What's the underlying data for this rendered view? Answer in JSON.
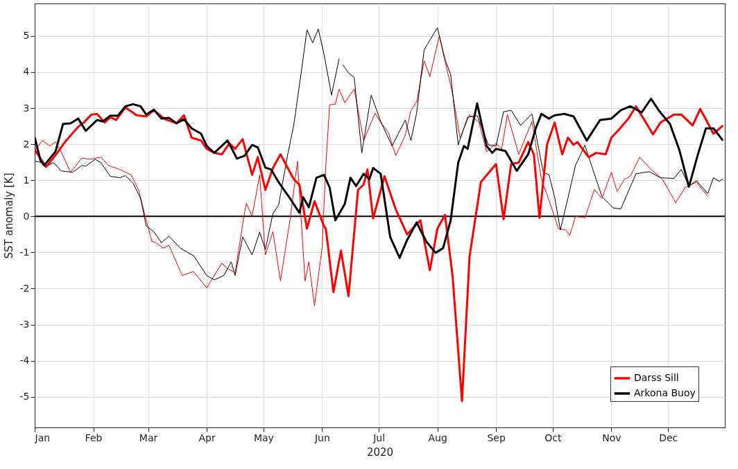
{
  "chart_data": {
    "type": "line",
    "xlabel": "2020",
    "ylabel": "SST anomaly [K]",
    "xlim": [
      "--01-01",
      "--12-31"
    ],
    "ylim": [
      -5.85,
      5.9
    ],
    "yticks": [
      -5,
      -4,
      -3,
      -2,
      -1,
      0,
      1,
      2,
      3,
      4,
      5
    ],
    "xticks": [
      {
        "value": "--01-01",
        "label": "Jan"
      },
      {
        "value": "--02-01",
        "label": "Feb"
      },
      {
        "value": "--03-01",
        "label": "Mar"
      },
      {
        "value": "--04-01",
        "label": "Apr"
      },
      {
        "value": "--05-01",
        "label": "May"
      },
      {
        "value": "--06-01",
        "label": "Jun"
      },
      {
        "value": "--07-01",
        "label": "Jul"
      },
      {
        "value": "--08-01",
        "label": "Aug"
      },
      {
        "value": "--09-01",
        "label": "Sep"
      },
      {
        "value": "--10-01",
        "label": "Oct"
      },
      {
        "value": "--11-01",
        "label": "Nov"
      },
      {
        "value": "--12-01",
        "label": "Dec"
      }
    ],
    "grid": true,
    "legend": "bottom right",
    "line_style": "solid",
    "marker": "none",
    "ref_lines": [
      {
        "axis": "y",
        "value": 0,
        "label": null,
        "color": "#000000"
      }
    ],
    "series": [
      {
        "color": "#ff0000",
        "x": [
          "--01-01",
          "--01-05",
          "--01-09",
          "--01-12",
          "--01-15",
          "--01-20",
          "--01-26",
          "--01-30",
          "--02-05",
          "--02-09",
          "--02-15",
          "--02-21",
          "--02-25",
          "--02-29",
          "--03-03",
          "--03-05",
          "--03-09",
          "--03-12",
          "--03-19",
          "--03-25",
          "--04-01",
          "--04-09",
          "--04-12",
          "--04-16",
          "--04-21",
          "--04-22",
          "--04-25",
          "--04-29",
          "--05-02",
          "--05-06",
          "--05-10",
          "--05-15",
          "--05-19",
          "--05-23",
          "--05-25",
          "--05-28",
          "--06-01",
          "--06-03",
          "--06-05",
          "--06-08",
          "--06-10",
          "--06-13",
          "--06-18",
          "--06-23",
          "--06-29",
          "--07-02",
          "--07-06",
          "--07-10",
          "--07-15",
          "--07-18",
          "--07-21",
          "--07-25",
          "--07-28",
          "--08-02",
          "--08-06",
          "--08-09",
          "--08-13",
          "--08-18",
          "--08-23",
          "--08-27",
          "--09-01",
          "--09-04",
          "--09-07",
          "--09-13",
          "--09-20",
          "--09-25",
          "--09-29",
          "--10-04",
          "--10-08",
          "--10-10",
          "--10-13",
          "--10-18",
          "--10-23",
          "--10-27",
          "--11-01",
          "--11-04",
          "--11-08",
          "--11-11",
          "--11-16",
          "--11-22",
          "--11-28",
          "--12-05",
          "--12-10",
          "--12-16",
          "--12-22"
        ],
        "values": [
          1.83,
          2.1,
          1.95,
          2.06,
          1.79,
          1.22,
          1.62,
          1.58,
          1.64,
          1.41,
          1.3,
          1.15,
          0.73,
          -0.11,
          -0.69,
          -0.73,
          -0.88,
          -0.8,
          -1.64,
          -1.53,
          -1.98,
          -1.3,
          -1.45,
          -1.56,
          0.11,
          0.36,
          0,
          1.15,
          -1.07,
          -0.42,
          -1.79,
          -0.11,
          1.53,
          -1.79,
          -1.26,
          -2.48,
          -0.88,
          1.41,
          3.09,
          3.11,
          3.53,
          3.15,
          3.53,
          2.1,
          2.86,
          2.6,
          2.33,
          1.68,
          2.25,
          2.94,
          3.17,
          4.31,
          3.87,
          5.0,
          4.08,
          3.4,
          2.18,
          2.82,
          2.6,
          1.79,
          2.02,
          1.87,
          2.82,
          1.72,
          2.63,
          1.03,
          0.45,
          -0.34,
          -0.38,
          -0.53,
          0,
          -0.04,
          0.74,
          0.5,
          1.22,
          0.69,
          1.03,
          1.11,
          1.64,
          1.3,
          1.03,
          0.38,
          0.8,
          0.95,
          0.55
        ]
      },
      {
        "color": "#000000",
        "x": [
          "--01-01",
          "--01-05",
          "--01-08",
          "--01-11",
          "--01-15",
          "--01-21",
          "--01-26",
          "--01-28",
          "--02-02",
          "--02-05",
          "--02-10",
          "--02-15",
          "--02-18",
          "--02-22",
          "--02-26",
          "--02-29",
          "--03-04",
          "--03-08",
          "--03-12",
          "--03-18",
          "--03-25",
          "--04-01",
          "--04-05",
          "--04-10",
          "--04-14",
          "--04-16",
          "--04-20",
          "--04-25",
          "--04-29",
          "--05-02",
          "--05-06",
          "--05-09",
          "--05-14",
          "--05-17",
          "--05-21",
          "--05-24",
          "--05-27",
          "--05-30",
          "--06-02",
          "--06-06",
          "--06-10",
          "--06-11",
          "--06-12",
          "--06-15",
          "--06-18",
          "--06-22",
          "--06-27",
          "--07-02",
          "--07-08",
          "--07-15",
          "--07-18",
          "--07-21",
          "--07-25",
          "--08-01",
          "--08-05",
          "--08-08",
          "--08-12",
          "--08-17",
          "--08-22",
          "--08-28",
          "--09-01",
          "--09-05",
          "--09-09",
          "--09-14",
          "--09-20",
          "--09-26",
          "--09-29",
          "--10-02",
          "--10-05",
          "--10-09",
          "--10-13",
          "--10-18",
          "--10-21",
          "--10-27",
          "--11-02",
          "--11-06",
          "--11-14",
          "--11-21",
          "--11-27",
          "--12-04",
          "--12-08",
          "--12-12",
          "--12-16",
          "--12-22",
          "--12-25",
          "--12-28",
          "--12-30"
        ],
        "values": [
          1.53,
          1.49,
          1.41,
          1.49,
          1.26,
          1.22,
          1.41,
          1.39,
          1.58,
          1.49,
          1.11,
          1.07,
          1.13,
          0.92,
          0.5,
          -0.27,
          -0.42,
          -0.73,
          -0.55,
          -0.88,
          -1.09,
          -1.64,
          -1.76,
          -1.64,
          -1.26,
          -1.64,
          -0.57,
          -1.07,
          -0.44,
          -0.92,
          0.08,
          0.31,
          1.76,
          2.52,
          4.0,
          5.17,
          4.81,
          5.19,
          4.5,
          3.36,
          4.37,
          null,
          4.2,
          3.97,
          3.85,
          1.76,
          3.36,
          2.63,
          1.95,
          2.67,
          2.1,
          2.86,
          4.62,
          5.23,
          4.35,
          3.93,
          1.98,
          2.75,
          2.79,
          1.98,
          1.95,
          2.9,
          2.94,
          2.52,
          2.84,
          1.22,
          1.15,
          0.53,
          -0.38,
          0.5,
          1.41,
          1.97,
          1.49,
          0.55,
          0.23,
          0.21,
          1.18,
          1.24,
          1.07,
          1.05,
          1.3,
          0.84,
          0.99,
          0.63,
          1.07,
          0.97,
          1.03
        ]
      },
      {
        "name": "Darss Sill",
        "color": "#ff0000",
        "x": [
          "--01-01",
          "--01-07",
          "--01-13",
          "--01-17",
          "--01-24",
          "--01-27",
          "--01-31",
          "--02-03",
          "--02-07",
          "--02-10",
          "--02-13",
          "--02-18",
          "--02-24",
          "--02-29",
          "--03-04",
          "--03-10",
          "--03-16",
          "--03-20",
          "--03-24",
          "--03-29",
          "--04-01",
          "--04-05",
          "--04-09",
          "--04-13",
          "--04-16",
          "--04-20",
          "--04-25",
          "--04-28",
          "--05-02",
          "--05-06",
          "--05-10",
          "--05-17",
          "--05-20",
          "--05-24",
          "--05-28",
          "--06-02",
          "--06-03",
          "--06-07",
          "--06-11",
          "--06-15",
          "--06-20",
          "--06-23",
          "--06-25",
          "--06-28",
          "--07-04",
          "--07-10",
          "--07-16",
          "--07-23",
          "--07-28",
          "--08-01",
          "--08-05",
          "--08-09",
          "--08-14",
          "--08-18",
          "--08-24",
          "--09-01",
          "--09-05",
          "--09-09",
          "--09-13",
          "--09-18",
          "--09-21",
          "--09-24",
          "--09-28",
          "--10-02",
          "--10-06",
          "--10-09",
          "--10-12",
          "--10-14",
          "--10-20",
          "--10-24",
          "--10-29",
          "--11-01",
          "--11-05",
          "--11-10",
          "--11-14",
          "--11-18",
          "--11-23",
          "--11-27",
          "--12-04",
          "--12-08",
          "--12-14",
          "--12-18",
          "--12-25",
          "--12-30"
        ],
        "values": [
          1.85,
          1.37,
          1.76,
          2.06,
          2.48,
          2.6,
          2.82,
          2.84,
          2.6,
          2.75,
          2.67,
          3.02,
          2.8,
          2.77,
          2.94,
          2.69,
          2.58,
          2.8,
          2.18,
          2.1,
          1.87,
          1.76,
          1.72,
          2.02,
          1.87,
          2.14,
          1.15,
          1.64,
          0.73,
          1.34,
          1.72,
          1.03,
          0.88,
          -0.34,
          0.42,
          -0.27,
          -0.34,
          -2.1,
          -0.95,
          -2.21,
          0.73,
          0.88,
          1.3,
          -0.06,
          1.11,
          0.19,
          -0.5,
          -0.11,
          -1.49,
          -0.34,
          0.04,
          -1.64,
          -5.12,
          -1.11,
          0.95,
          1.45,
          -0.08,
          1.45,
          1.49,
          2.06,
          1.72,
          -0.04,
          2.0,
          2.6,
          1.72,
          2.18,
          1.98,
          2.06,
          1.64,
          1.76,
          1.72,
          2.18,
          2.4,
          2.71,
          3.05,
          2.71,
          2.27,
          2.6,
          2.82,
          2.82,
          2.52,
          2.98,
          2.29,
          2.52
        ]
      },
      {
        "name": "Arkona Buoy",
        "color": "#000000",
        "x": [
          "--01-01",
          "--01-04",
          "--01-06",
          "--01-12",
          "--01-16",
          "--01-20",
          "--01-24",
          "--01-28",
          "--02-03",
          "--02-06",
          "--02-10",
          "--02-14",
          "--02-18",
          "--02-22",
          "--02-26",
          "--02-29",
          "--03-04",
          "--03-08",
          "--03-12",
          "--03-16",
          "--03-20",
          "--03-24",
          "--03-29",
          "--04-01",
          "--04-05",
          "--04-12",
          "--04-17",
          "--04-21",
          "--04-25",
          "--04-28",
          "--05-02",
          "--05-05",
          "--05-09",
          "--05-15",
          "--05-20",
          "--05-22",
          "--05-25",
          "--05-29",
          "--06-02",
          "--06-05",
          "--06-08",
          "--06-13",
          "--06-16",
          "--06-19",
          "--06-23",
          "--06-26",
          "--06-28",
          "--07-02",
          "--07-07",
          "--07-12",
          "--07-16",
          "--07-21",
          "--07-26",
          "--07-31",
          "--08-04",
          "--08-08",
          "--08-12",
          "--08-15",
          "--08-17",
          "--08-22",
          "--08-27",
          "--08-30",
          "--09-01",
          "--09-06",
          "--09-12",
          "--09-18",
          "--09-22",
          "--09-25",
          "--09-29",
          "--10-02",
          "--10-07",
          "--10-12",
          "--10-19",
          "--10-26",
          "--11-01",
          "--11-06",
          "--11-11",
          "--11-17",
          "--11-22",
          "--11-26",
          "--12-02",
          "--12-07",
          "--12-12",
          "--12-17",
          "--12-21",
          "--12-25",
          "--12-30"
        ],
        "values": [
          2.19,
          1.56,
          1.41,
          1.79,
          2.56,
          2.58,
          2.71,
          2.37,
          2.67,
          2.63,
          2.79,
          2.79,
          3.05,
          3.11,
          3.05,
          2.82,
          2.96,
          2.71,
          2.73,
          2.58,
          2.69,
          2.44,
          2.29,
          1.95,
          1.76,
          2.1,
          1.6,
          1.68,
          1.98,
          1.91,
          1.35,
          1.3,
          0.95,
          0.5,
          0.1,
          0.53,
          0.25,
          1.07,
          1.15,
          0.8,
          -0.11,
          0.34,
          1.07,
          0.84,
          1.18,
          1.03,
          1.34,
          1.18,
          -0.57,
          -1.15,
          -0.65,
          -0.17,
          -0.69,
          -1.01,
          -0.88,
          -0.11,
          1.49,
          1.95,
          1.87,
          3.13,
          1.95,
          1.76,
          1.87,
          1.81,
          1.26,
          1.72,
          2.44,
          2.84,
          2.71,
          2.8,
          2.84,
          2.77,
          2.1,
          2.67,
          2.71,
          2.94,
          3.05,
          2.88,
          3.26,
          2.94,
          2.56,
          1.83,
          0.82,
          1.76,
          2.44,
          2.44,
          2.1
        ]
      }
    ]
  }
}
